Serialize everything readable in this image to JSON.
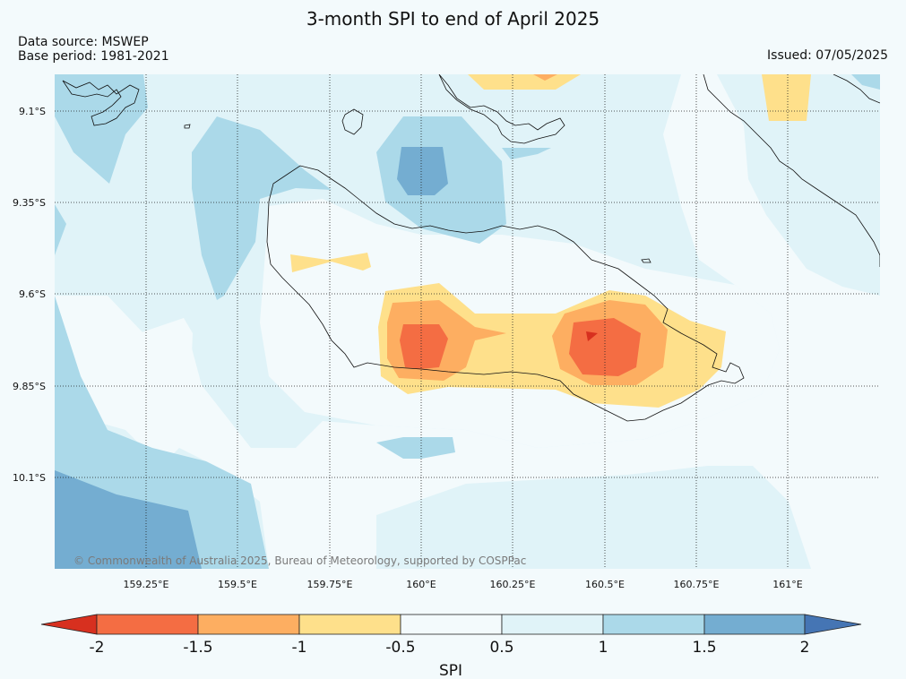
{
  "header": {
    "title": "3-month SPI to end of April 2025",
    "data_source": "Data source: MSWEP",
    "base_period": "Base period: 1981-2021",
    "issued": "Issued: 07/05/2025"
  },
  "map": {
    "lat_labels": [
      "9.1°S",
      "9.35°S",
      "9.6°S",
      "9.85°S",
      "10.1°S"
    ],
    "lon_labels": [
      "159.25°E",
      "159.5°E",
      "159.75°E",
      "160°E",
      "160.25°E",
      "160.5°E",
      "160.75°E",
      "161°E"
    ],
    "copyright": "© Commonwealth of Australia 2025, Bureau of Meteorology, supported by COSPPac"
  },
  "colorbar": {
    "label": "SPI",
    "ticks": [
      "-2",
      "-1.5",
      "-1",
      "-0.5",
      "0.5",
      "1",
      "1.5",
      "2"
    ],
    "colors": {
      "lt_m2": "#d7301f",
      "m2_m15": "#f46d43",
      "m15_m1": "#fdae61",
      "m1_m05": "#fee08b",
      "m05_05": "#f3fafc",
      "p05_1": "#e0f3f8",
      "p1_15": "#abd9e9",
      "p15_2": "#74add1",
      "gt_2": "#4575b4"
    }
  }
}
